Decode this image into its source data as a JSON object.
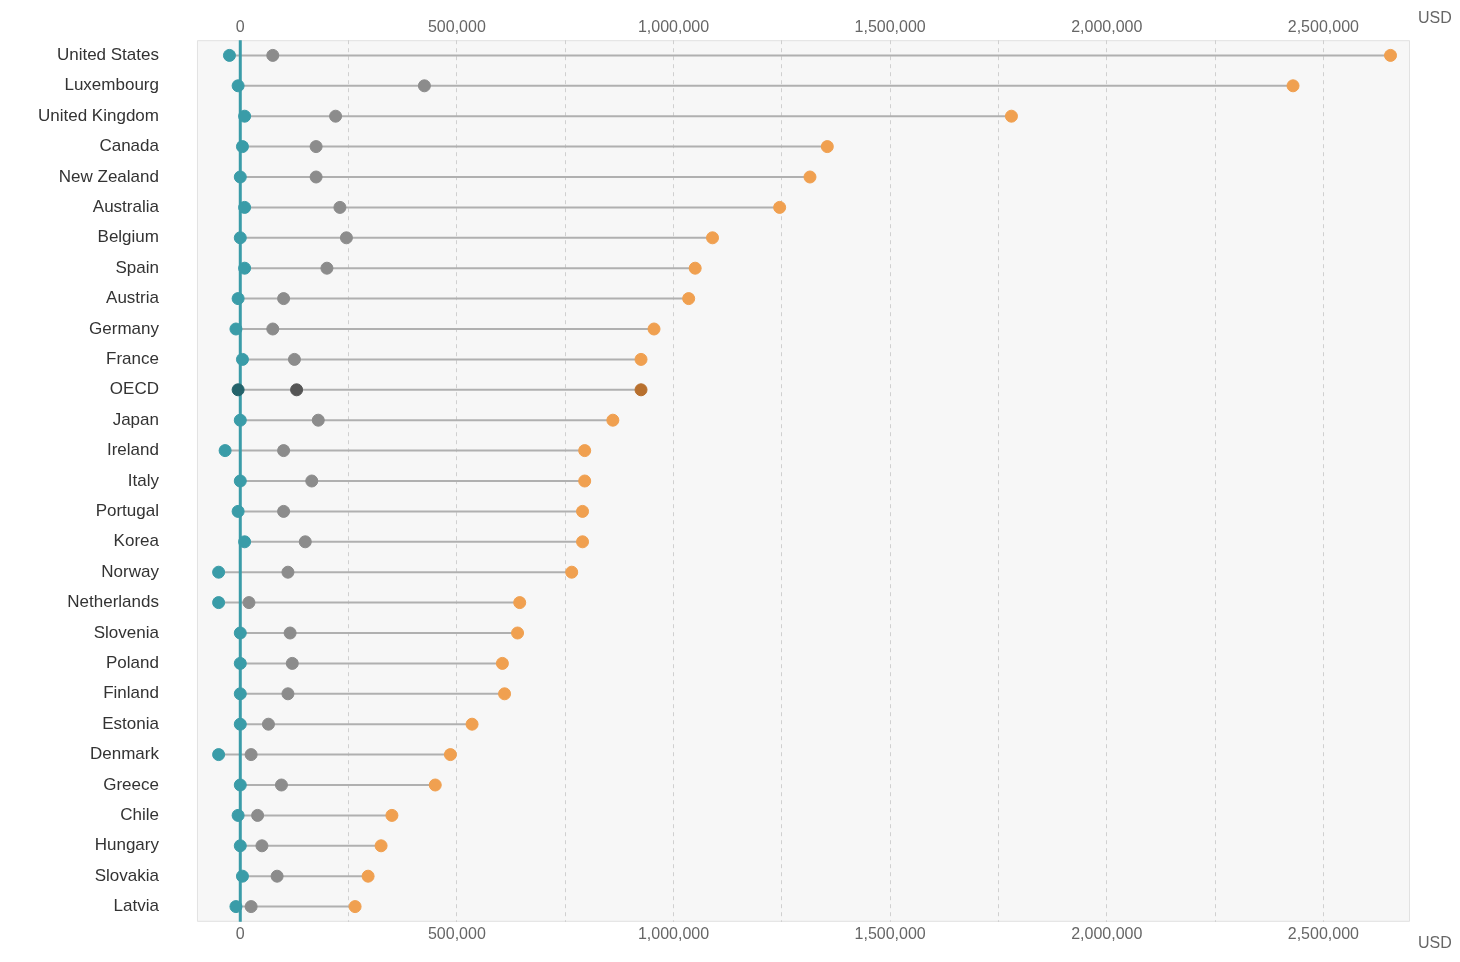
{
  "chart_data": {
    "type": "scatter",
    "orientation": "horizontal",
    "marker": "circle",
    "grid": "x",
    "legend": false,
    "xlabel": "USD",
    "x2label": "USD",
    "categories": [
      "United States",
      "Luxembourg",
      "United Kingdom",
      "Canada",
      "New Zealand",
      "Australia",
      "Belgium",
      "Spain",
      "Austria",
      "Germany",
      "France",
      "OECD",
      "Japan",
      "Ireland",
      "Italy",
      "Portugal",
      "Korea",
      "Norway",
      "Netherlands",
      "Slovenia",
      "Poland",
      "Finland",
      "Estonia",
      "Denmark",
      "Greece",
      "Chile",
      "Hungary",
      "Slovakia",
      "Latvia"
    ],
    "xlim": [
      -100000,
      2700000
    ],
    "xticks": [
      0,
      {
        "value": 250000,
        "label": null
      },
      {
        "value": 500000,
        "label": "500,000"
      },
      {
        "value": 750000,
        "label": null
      },
      {
        "value": 1000000,
        "label": "1,000,000"
      },
      {
        "value": 1250000,
        "label": null
      },
      {
        "value": 1500000,
        "label": "1,500,000"
      },
      {
        "value": 1750000,
        "label": null
      },
      {
        "value": 2000000,
        "label": "2,000,000"
      },
      {
        "value": 2250000,
        "label": null
      },
      {
        "value": 2500000,
        "label": "2,500,000"
      }
    ],
    "x2lim": [
      -100000,
      2700000
    ],
    "x2ticks": [
      0,
      {
        "value": 250000,
        "label": null
      },
      {
        "value": 500000,
        "label": "500,000"
      },
      {
        "value": 750000,
        "label": null
      },
      {
        "value": 1000000,
        "label": "1,000,000"
      },
      {
        "value": 1250000,
        "label": null
      },
      {
        "value": 1500000,
        "label": "1,500,000"
      },
      {
        "value": 1750000,
        "label": null
      },
      {
        "value": 2000000,
        "label": "2,000,000"
      },
      {
        "value": 2250000,
        "label": null
      },
      {
        "value": 2500000,
        "label": "2,500,000"
      }
    ],
    "ref_lines": [
      {
        "axis": "x",
        "value": 0,
        "color": "#3a9ca8"
      }
    ],
    "series": [
      {
        "colors": [
          "#3a9ca8",
          "#3a9ca8",
          "#3a9ca8",
          "#3a9ca8",
          "#3a9ca8",
          "#3a9ca8",
          "#3a9ca8",
          "#3a9ca8",
          "#3a9ca8",
          "#3a9ca8",
          "#3a9ca8",
          "#24636b",
          "#3a9ca8",
          "#3a9ca8",
          "#3a9ca8",
          "#3a9ca8",
          "#3a9ca8",
          "#3a9ca8",
          "#3a9ca8",
          "#3a9ca8",
          "#3a9ca8",
          "#3a9ca8",
          "#3a9ca8",
          "#3a9ca8",
          "#3a9ca8",
          "#3a9ca8",
          "#3a9ca8",
          "#3a9ca8",
          "#3a9ca8"
        ],
        "values": [
          -25000,
          -5000,
          10000,
          5000,
          0,
          10000,
          0,
          10000,
          -5000,
          -10000,
          5000,
          -5000,
          0,
          -35000,
          0,
          -5000,
          10000,
          -50000,
          -50000,
          0,
          0,
          0,
          0,
          -50000,
          0,
          -5000,
          0,
          5000,
          -10000
        ]
      },
      {
        "colors": [
          "#8c8c8c",
          "#8c8c8c",
          "#8c8c8c",
          "#8c8c8c",
          "#8c8c8c",
          "#8c8c8c",
          "#8c8c8c",
          "#8c8c8c",
          "#8c8c8c",
          "#8c8c8c",
          "#8c8c8c",
          "#555555",
          "#8c8c8c",
          "#8c8c8c",
          "#8c8c8c",
          "#8c8c8c",
          "#8c8c8c",
          "#8c8c8c",
          "#8c8c8c",
          "#8c8c8c",
          "#8c8c8c",
          "#8c8c8c",
          "#8c8c8c",
          "#8c8c8c",
          "#8c8c8c",
          "#8c8c8c",
          "#8c8c8c",
          "#8c8c8c",
          "#8c8c8c"
        ],
        "values": [
          75000,
          425000,
          220000,
          175000,
          175000,
          230000,
          245000,
          200000,
          100000,
          75000,
          125000,
          130000,
          180000,
          100000,
          165000,
          100000,
          150000,
          110000,
          20000,
          115000,
          120000,
          110000,
          65000,
          25000,
          95000,
          40000,
          50000,
          85000,
          25000
        ]
      },
      {
        "colors": [
          "#f0a050",
          "#f0a050",
          "#f0a050",
          "#f0a050",
          "#f0a050",
          "#f0a050",
          "#f0a050",
          "#f0a050",
          "#f0a050",
          "#f0a050",
          "#f0a050",
          "#b8702e",
          "#f0a050",
          "#f0a050",
          "#f0a050",
          "#f0a050",
          "#f0a050",
          "#f0a050",
          "#f0a050",
          "#f0a050",
          "#f0a050",
          "#f0a050",
          "#f0a050",
          "#f0a050",
          "#f0a050",
          "#f0a050",
          "#f0a050",
          "#f0a050",
          "#f0a050"
        ],
        "values": [
          2655000,
          2430000,
          1780000,
          1355000,
          1315000,
          1245000,
          1090000,
          1050000,
          1035000,
          955000,
          925000,
          925000,
          860000,
          795000,
          795000,
          790000,
          790000,
          765000,
          645000,
          640000,
          605000,
          610000,
          535000,
          485000,
          450000,
          350000,
          325000,
          295000,
          265000
        ]
      }
    ]
  }
}
